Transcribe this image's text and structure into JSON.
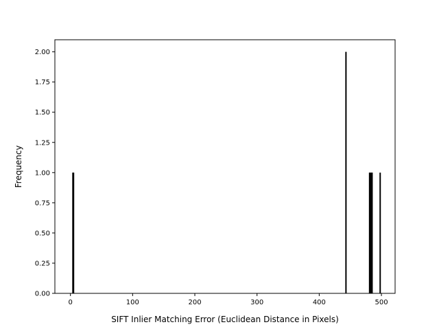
{
  "chart_data": {
    "type": "bar",
    "xlabel": "SIFT Inlier Matching Error (Euclidean Distance in Pixels)",
    "ylabel": "Frequency",
    "xlim": [
      -25,
      522
    ],
    "ylim": [
      0,
      2.1
    ],
    "grid": false,
    "x_ticks": [
      0,
      100,
      200,
      300,
      400,
      500
    ],
    "x_tick_labels": [
      "0",
      "100",
      "200",
      "300",
      "400",
      "500"
    ],
    "y_ticks": [
      0,
      0.25,
      0.5,
      0.75,
      1.0,
      1.25,
      1.5,
      1.75,
      2.0
    ],
    "y_tick_labels": [
      "0.00",
      "0.25",
      "0.50",
      "0.75",
      "1.00",
      "1.25",
      "1.50",
      "1.75",
      "2.00"
    ],
    "bars": [
      {
        "x": 4,
        "value": 1
      },
      {
        "x": 5,
        "value": 1
      },
      {
        "x": 443,
        "value": 2
      },
      {
        "x": 481,
        "value": 1
      },
      {
        "x": 482,
        "value": 1
      },
      {
        "x": 484,
        "value": 1
      },
      {
        "x": 485,
        "value": 1
      },
      {
        "x": 498,
        "value": 1
      }
    ],
    "bar_color": "#000000"
  }
}
